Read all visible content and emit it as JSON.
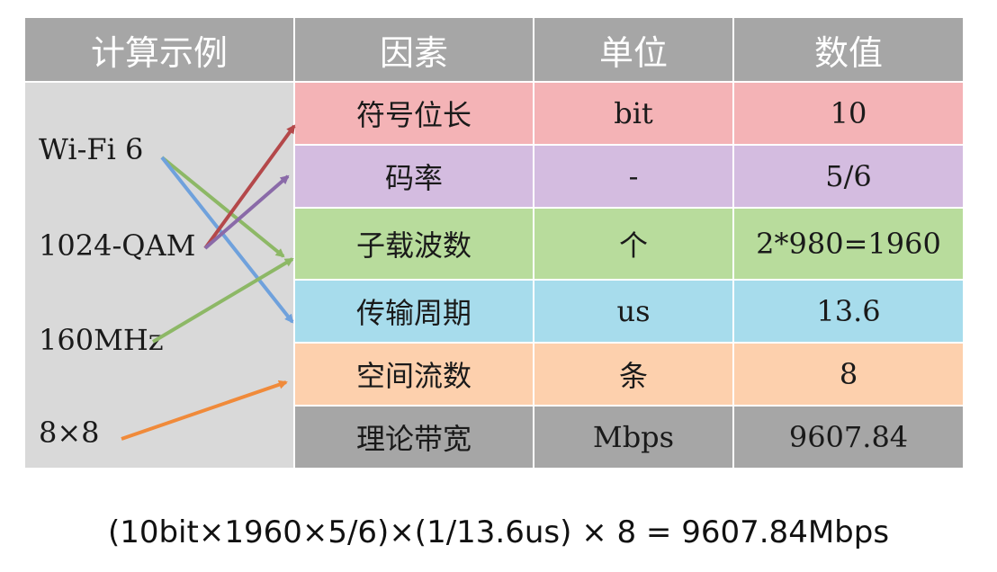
{
  "headers": {
    "example": "计算示例",
    "factor": "因素",
    "unit": "单位",
    "value": "数值"
  },
  "examples": [
    "Wi-Fi 6",
    "1024-QAM",
    "160MHz",
    "8×8"
  ],
  "rows": [
    {
      "factor": "符号位长",
      "unit": "bit",
      "value": "10",
      "color": "#f4b3b6"
    },
    {
      "factor": "码率",
      "unit": "-",
      "value": "5/6",
      "color": "#d4bce0"
    },
    {
      "factor": "子载波数",
      "unit": "个",
      "value": "2*980=1960",
      "color": "#b8dc9c"
    },
    {
      "factor": "传输周期",
      "unit": "us",
      "value": "13.6",
      "color": "#a7dcec"
    },
    {
      "factor": "空间流数",
      "unit": "条",
      "value": "8",
      "color": "#fdd0ad"
    },
    {
      "factor": "理论带宽",
      "unit": "Mbps",
      "value": "9607.84",
      "color": "#a6a6a6"
    }
  ],
  "arrow_colors": {
    "wifi6_to_subcarriers": "#8db866",
    "wifi6_to_period": "#6fa1dc",
    "qam_to_symbol_bits": "#b4484a",
    "qam_to_code_rate": "#8a6aa8",
    "mhz_to_subcarriers": "#8db866",
    "mimo_to_streams": "#f08a3a"
  },
  "formula": "(10bit×1960×5/6)×(1/13.6us) × 8 = 9607.84Mbps"
}
